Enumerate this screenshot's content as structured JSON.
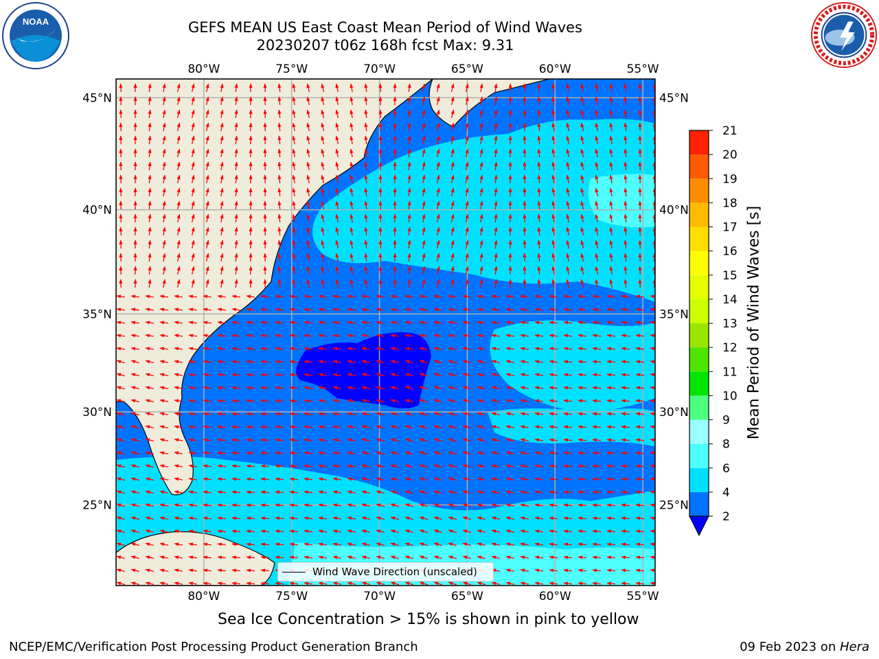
{
  "title": {
    "line1": "GEFS MEAN US East Coast Mean Period of Wind Waves",
    "line2": "20230207 t06z 168h fcst   Max: 9.31"
  },
  "logos": {
    "left": {
      "icon": "noaa-logo-icon",
      "text": "NOAA"
    },
    "right": {
      "icon": "nws-logo-icon",
      "text": "NATIONAL WEATHER SERVICE"
    }
  },
  "map": {
    "lon_range": [
      -85,
      -54.3
    ],
    "lat_range": [
      20.5,
      45.8
    ],
    "lon_ticks": [
      "80°W",
      "75°W",
      "70°W",
      "65°W",
      "60°W",
      "55°W"
    ],
    "lon_tick_values": [
      -80,
      -75,
      -70,
      -65,
      -60,
      -55
    ],
    "lat_ticks": [
      "45°N",
      "40°N",
      "35°N",
      "30°N",
      "25°N"
    ],
    "lat_tick_values": [
      45,
      40,
      35,
      30,
      25
    ],
    "grid": true,
    "land_color": "#efecdc",
    "arrow_color": "#ff0000"
  },
  "legend": {
    "label": "Wind Wave Direction (unscaled)",
    "placement": "lower-center"
  },
  "colorbar": {
    "title": "Mean Period of Wind Waves [s]",
    "ticks": [
      "2",
      "4",
      "6",
      "8",
      "9",
      "10",
      "11",
      "12",
      "13",
      "14",
      "15",
      "16",
      "17",
      "18",
      "19",
      "20",
      "21"
    ],
    "colors": [
      "#0073ff",
      "#00e1ff",
      "#4dffff",
      "#99ffff",
      "#4dff80",
      "#00e600",
      "#4ce600",
      "#99e600",
      "#ccff00",
      "#e6ff00",
      "#ffff00",
      "#ffdd00",
      "#ffbb00",
      "#ff8c00",
      "#ff5a00",
      "#ff2200"
    ],
    "under_color": "#0000ff"
  },
  "chart_data": {
    "type": "heatmap",
    "title": "GEFS MEAN US East Coast Mean Period of Wind Waves",
    "subtitle": "20230207 t06z 168h fcst   Max: 9.31",
    "xlabel": "",
    "ylabel": "",
    "max_value": 9.31,
    "colorbar_label": "Mean Period of Wind Waves [s]",
    "colorbar_range": [
      2,
      21
    ]
  },
  "footer": {
    "note": "Sea Ice Concentration > 15% is shown in pink to yellow",
    "left": "NCEP/EMC/Verification Post Processing Product Generation Branch",
    "right_date": "09 Feb 2023 on ",
    "right_host": "Hera"
  }
}
